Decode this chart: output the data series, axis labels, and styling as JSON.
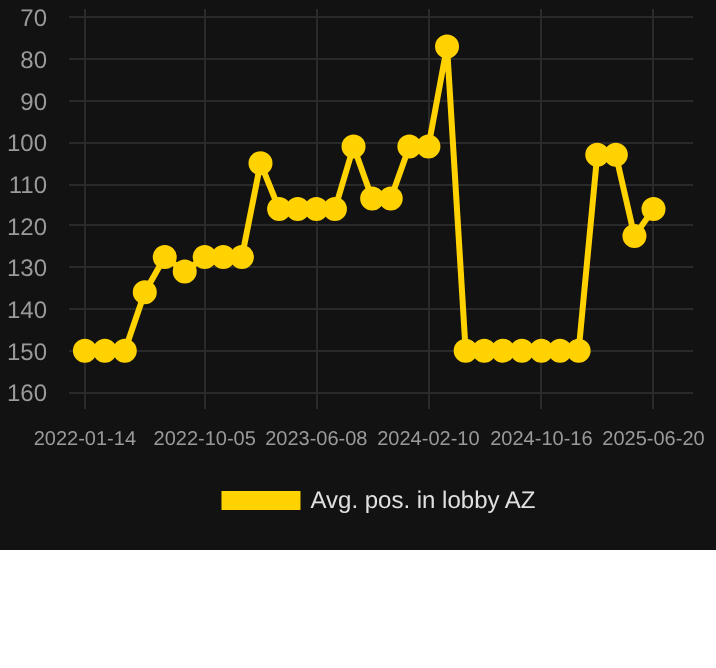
{
  "chart_data": {
    "type": "line",
    "x": [
      "2022-01-14",
      "2022-02-27",
      "2022-04-12",
      "2022-05-26",
      "2022-07-09",
      "2022-08-22",
      "2022-10-05",
      "2022-11-15",
      "2022-12-26",
      "2023-02-05",
      "2023-03-18",
      "2023-04-28",
      "2023-06-08",
      "2023-07-19",
      "2023-08-29",
      "2023-10-09",
      "2023-11-19",
      "2023-12-30",
      "2024-02-10",
      "2024-03-22",
      "2024-05-02",
      "2024-06-12",
      "2024-07-23",
      "2024-09-03",
      "2024-10-16",
      "2024-11-26",
      "2025-01-06",
      "2025-02-16",
      "2025-03-29",
      "2025-05-09",
      "2025-06-20"
    ],
    "series": [
      {
        "name": "Avg. pos. in lobby AZ",
        "color": "#ffd200",
        "values": [
          150,
          150,
          150,
          136,
          127.5,
          131,
          127.5,
          127.5,
          127.5,
          105,
          116,
          116,
          116,
          116,
          101,
          113.5,
          113.5,
          101,
          101,
          77,
          150,
          150,
          150,
          150,
          150,
          150,
          150,
          103,
          103,
          122.5,
          116
        ]
      }
    ],
    "xlim": [
      "2021-12-10",
      "2025-09-15"
    ],
    "xticks": [
      "2022-01-14",
      "2022-10-05",
      "2023-06-08",
      "2024-02-10",
      "2024-10-16",
      "2025-06-20"
    ],
    "ylim": [
      164,
      68
    ],
    "yticks": [
      70,
      80,
      90,
      100,
      110,
      120,
      130,
      140,
      150,
      160
    ],
    "grid": true,
    "legend": "bottom",
    "marker": "circle",
    "line_style": "solid"
  }
}
